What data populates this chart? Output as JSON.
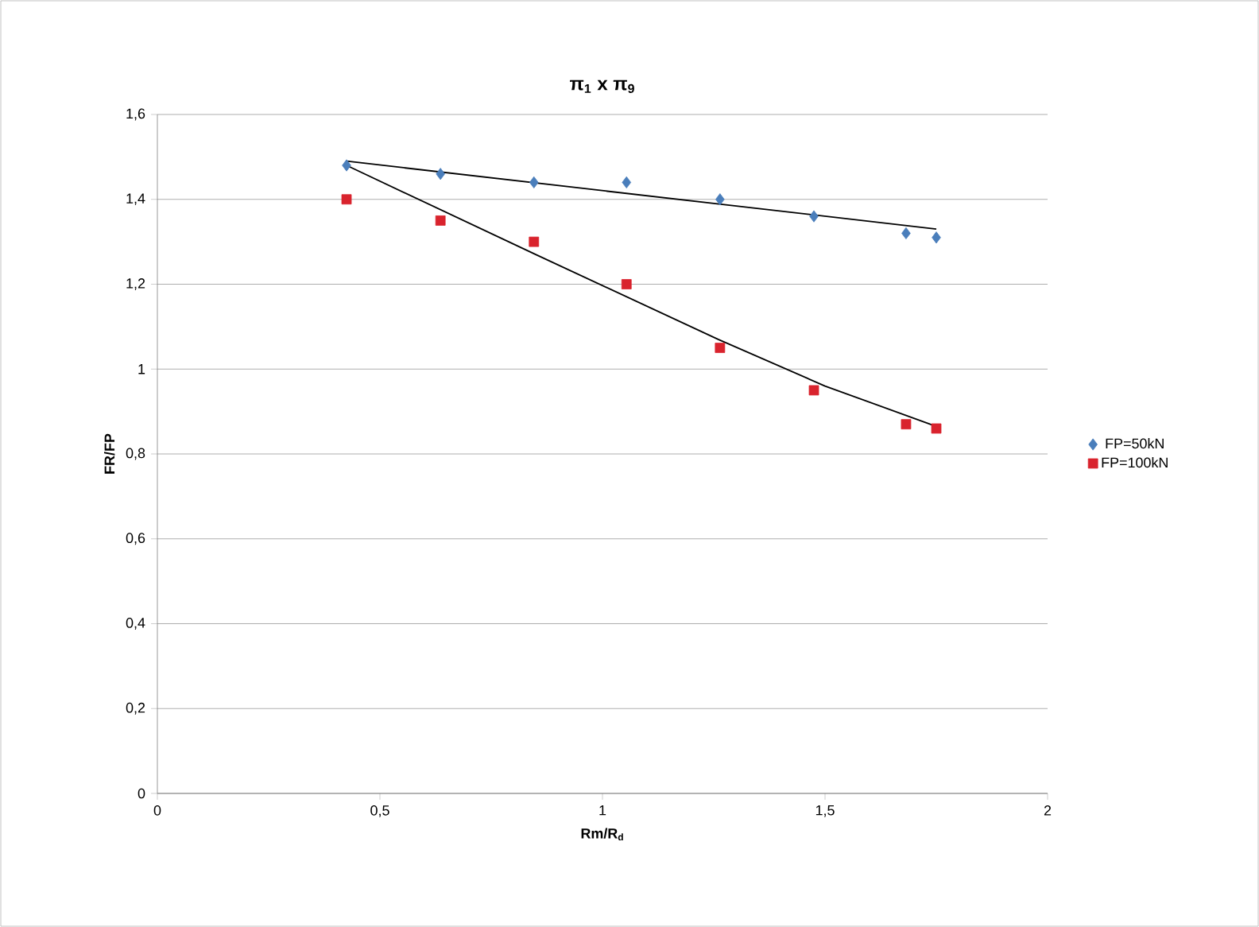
{
  "chart_data": {
    "type": "scatter",
    "title": "π$_{1}$ x π$_{9}$",
    "xlabel": "Rm/R$_{d}$",
    "ylabel": "FR/FP",
    "series": [
      {
        "name": "FP=50kN",
        "color": "#4a7ebb",
        "marker": "diamond",
        "x": [
          0.425,
          0.636,
          0.846,
          1.054,
          1.264,
          1.475,
          1.682,
          1.75
        ],
        "values": [
          1.48,
          1.46,
          1.44,
          1.44,
          1.4,
          1.36,
          1.32,
          1.31
        ]
      },
      {
        "name": "FP=100kN",
        "color": "#d9232d",
        "marker": "square",
        "x": [
          0.425,
          0.636,
          0.846,
          1.054,
          1.264,
          1.475,
          1.682,
          1.75
        ],
        "values": [
          1.4,
          1.35,
          1.3,
          1.2,
          1.05,
          0.95,
          0.87,
          0.86
        ]
      },
      {
        "type": "line",
        "color": "#000000",
        "marker": "none",
        "x": [
          0.425,
          1.75
        ],
        "values": [
          1.49,
          1.33
        ]
      },
      {
        "type": "line",
        "color": "#000000",
        "marker": "none",
        "x": [
          0.425,
          0.85,
          1.26,
          1.5,
          1.75
        ],
        "values": [
          1.48,
          1.27,
          1.07,
          0.96,
          0.865
        ]
      }
    ],
    "xlim": [
      0,
      2
    ],
    "xticks": [
      0,
      {
        "value": 0.5,
        "label": "0,5"
      },
      1,
      {
        "value": 1.5,
        "label": "1,5"
      },
      2
    ],
    "ylim": [
      0,
      1.6
    ],
    "yticks": [
      0,
      {
        "value": 0.2,
        "label": "0,2"
      },
      {
        "value": 0.4,
        "label": "0,4"
      },
      {
        "value": 0.6,
        "label": "0,6"
      },
      {
        "value": 0.8,
        "label": "0,8"
      },
      1,
      {
        "value": 1.2,
        "label": "1,2"
      },
      {
        "value": 1.4,
        "label": "1,4"
      },
      {
        "value": 1.6,
        "label": "1,6"
      }
    ],
    "grid": "y",
    "legend": "right"
  }
}
